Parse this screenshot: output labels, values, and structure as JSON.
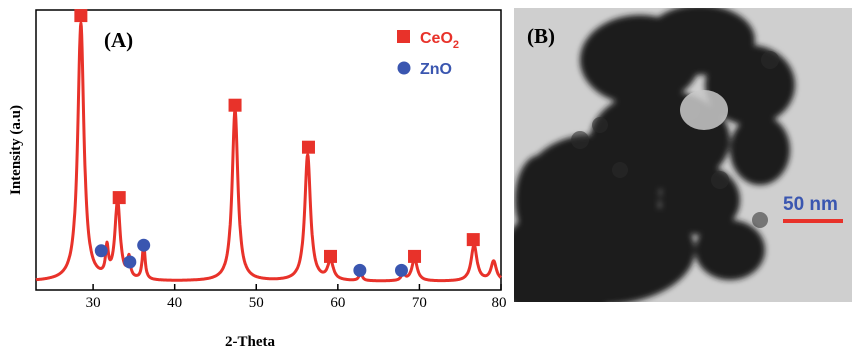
{
  "colors": {
    "curve": "#e8322a",
    "ceo2_marker": "#e8322a",
    "zno_marker": "#3a56b0",
    "scale_text": "#3a56b0",
    "scale_bar": "#e8322a",
    "axis": "#000000"
  },
  "chart_data": [
    {
      "type": "line",
      "panel_label": "(A)",
      "xlabel": "2-Theta",
      "ylabel": "Intensity (a.u)",
      "xlim": [
        23,
        80
      ],
      "ylim": [
        0,
        100
      ],
      "xticks": [
        30,
        40,
        50,
        60,
        70,
        80
      ],
      "y_tick_labels_shown": false,
      "grid": false,
      "legend": {
        "placement": "top-right",
        "entries": [
          {
            "marker": "square",
            "label_main": "CeO",
            "label_sub": "2",
            "color": "#e8322a"
          },
          {
            "marker": "circle",
            "label": "ZnO",
            "color": "#3a56b0"
          }
        ]
      },
      "series": [
        {
          "baseline": 3,
          "peaks": [
            {
              "x": 28.5,
              "height": 92,
              "width": 0.45
            },
            {
              "x": 31.7,
              "height": 10,
              "width": 0.2
            },
            {
              "x": 33.0,
              "height": 28,
              "width": 0.38
            },
            {
              "x": 34.4,
              "height": 7,
              "width": 0.2
            },
            {
              "x": 36.2,
              "height": 13,
              "width": 0.2
            },
            {
              "x": 47.4,
              "height": 61,
              "width": 0.42
            },
            {
              "x": 56.3,
              "height": 45,
              "width": 0.42
            },
            {
              "x": 59.1,
              "height": 7,
              "width": 0.4
            },
            {
              "x": 62.8,
              "height": 3,
              "width": 0.22
            },
            {
              "x": 68.0,
              "height": 3,
              "width": 0.22
            },
            {
              "x": 69.4,
              "height": 8,
              "width": 0.4
            },
            {
              "x": 76.7,
              "height": 13,
              "width": 0.42
            },
            {
              "x": 79.1,
              "height": 7,
              "width": 0.4
            }
          ]
        }
      ],
      "markers": [
        {
          "phase": "CeO2",
          "shape": "square",
          "x": 28.5,
          "y": 98
        },
        {
          "phase": "CeO2",
          "shape": "square",
          "x": 33.2,
          "y": 33
        },
        {
          "phase": "CeO2",
          "shape": "square",
          "x": 47.4,
          "y": 66
        },
        {
          "phase": "CeO2",
          "shape": "square",
          "x": 56.4,
          "y": 51
        },
        {
          "phase": "CeO2",
          "shape": "square",
          "x": 59.1,
          "y": 12
        },
        {
          "phase": "CeO2",
          "shape": "square",
          "x": 69.4,
          "y": 12
        },
        {
          "phase": "CeO2",
          "shape": "square",
          "x": 76.6,
          "y": 18
        },
        {
          "phase": "ZnO",
          "shape": "circle",
          "x": 31.0,
          "y": 14
        },
        {
          "phase": "ZnO",
          "shape": "circle",
          "x": 34.5,
          "y": 10
        },
        {
          "phase": "ZnO",
          "shape": "circle",
          "x": 36.2,
          "y": 16
        },
        {
          "phase": "ZnO",
          "shape": "circle",
          "x": 62.7,
          "y": 7
        },
        {
          "phase": "ZnO",
          "shape": "circle",
          "x": 67.8,
          "y": 7
        }
      ]
    },
    {
      "type": "image",
      "panel_label": "(B)",
      "description_visible": "TEM micrograph of aggregated nanoparticles",
      "scale_bar_label": "50 nm"
    }
  ]
}
